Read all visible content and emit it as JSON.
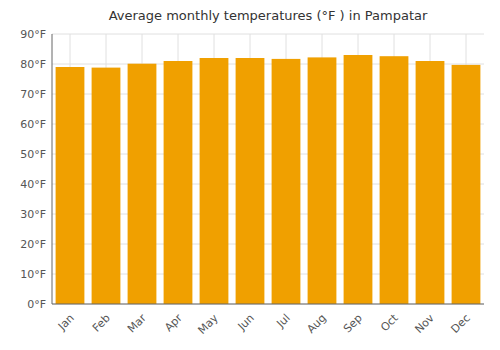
{
  "chart_data": {
    "type": "bar",
    "title": "Average monthly temperatures (°F ) in Pampatar",
    "categories": [
      "Jan",
      "Feb",
      "Mar",
      "Apr",
      "May",
      "Jun",
      "Jul",
      "Aug",
      "Sep",
      "Oct",
      "Nov",
      "Dec"
    ],
    "values": [
      79.0,
      78.8,
      80.1,
      81.0,
      82.0,
      82.0,
      81.7,
      82.2,
      83.0,
      82.6,
      81.0,
      79.7
    ],
    "color": "#F0A000",
    "ylim": [
      0,
      90
    ],
    "yticks": [
      {
        "value": 0,
        "label": "0°F"
      },
      {
        "value": 10,
        "label": "10°F"
      },
      {
        "value": 20,
        "label": "20°F"
      },
      {
        "value": 30,
        "label": "30°F"
      },
      {
        "value": 40,
        "label": "40°F"
      },
      {
        "value": 50,
        "label": "50°F"
      },
      {
        "value": 60,
        "label": "60°F"
      },
      {
        "value": 70,
        "label": "70°F"
      },
      {
        "value": 80,
        "label": "80°F"
      },
      {
        "value": 90,
        "label": "90°F"
      }
    ],
    "grid": true
  }
}
